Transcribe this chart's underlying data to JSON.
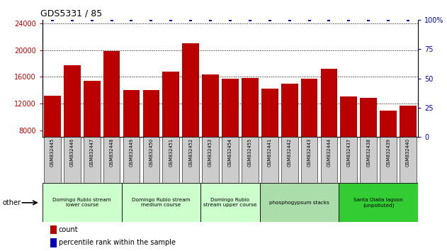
{
  "title": "GDS5331 / 85",
  "samples": [
    "GSM832445",
    "GSM832446",
    "GSM832447",
    "GSM832448",
    "GSM832449",
    "GSM832450",
    "GSM832451",
    "GSM832452",
    "GSM832453",
    "GSM832454",
    "GSM832455",
    "GSM832441",
    "GSM832442",
    "GSM832443",
    "GSM832444",
    "GSM832437",
    "GSM832438",
    "GSM832439",
    "GSM832440"
  ],
  "counts": [
    13200,
    17700,
    15400,
    19900,
    14000,
    14000,
    16800,
    21000,
    16400,
    15700,
    15800,
    14200,
    15000,
    15700,
    17200,
    13100,
    12800,
    10900,
    11700
  ],
  "percentile_values": [
    100,
    100,
    100,
    100,
    100,
    100,
    100,
    100,
    100,
    100,
    100,
    100,
    100,
    100,
    100,
    100,
    100,
    100,
    100
  ],
  "bar_color": "#bb0000",
  "dot_color": "#0000bb",
  "ylim_left": [
    7000,
    24500
  ],
  "yticks_left": [
    8000,
    12000,
    16000,
    20000,
    24000
  ],
  "ylim_right": [
    0,
    100
  ],
  "yticks_right": [
    0,
    25,
    50,
    75,
    100
  ],
  "grid_ticks": [
    12000,
    16000,
    20000
  ],
  "groups": [
    {
      "label": "Domingo Rubio stream\nlower course",
      "start": 0,
      "end": 3,
      "color": "#ccffcc"
    },
    {
      "label": "Domingo Rubio stream\nmedium course",
      "start": 4,
      "end": 7,
      "color": "#ccffcc"
    },
    {
      "label": "Domingo Rubio\nstream upper course",
      "start": 8,
      "end": 10,
      "color": "#ccffcc"
    },
    {
      "label": "phosphogypsum stacks",
      "start": 11,
      "end": 14,
      "color": "#aaddaa"
    },
    {
      "label": "Santa Olalla lagoon\n(unpolluted)",
      "start": 15,
      "end": 18,
      "color": "#33cc33"
    }
  ],
  "tick_bg_color": "#cccccc",
  "other_label": "other",
  "legend_count_color": "#bb0000",
  "legend_percentile_color": "#0000bb",
  "bg_color": "#ffffff"
}
